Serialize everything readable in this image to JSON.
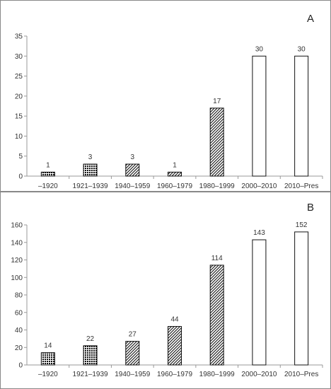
{
  "chart_data": [
    {
      "type": "bar",
      "panel": "A",
      "categories": [
        "–1920",
        "1921–1939",
        "1940–1959",
        "1960–1979",
        "1980–1999",
        "2000–2010",
        "2010–Pres"
      ],
      "values": [
        1,
        3,
        3,
        1,
        17,
        30,
        30
      ],
      "data_labels": [
        "1",
        "3",
        "3",
        "1",
        "17",
        "30",
        "30"
      ],
      "patterns": [
        "crosshatch",
        "crosshatch",
        "diag",
        "diag",
        "diag",
        "none",
        "none"
      ],
      "yticks": [
        "0",
        "5",
        "10",
        "15",
        "20",
        "25",
        "30",
        "35"
      ],
      "ylim": [
        0,
        35
      ],
      "grid": false,
      "legend": "none"
    },
    {
      "type": "bar",
      "panel": "B",
      "categories": [
        "–1920",
        "1921–1939",
        "1940–1959",
        "1960–1979",
        "1980–1999",
        "2000–2010",
        "2010–Pres"
      ],
      "values": [
        14,
        22,
        27,
        44,
        114,
        143,
        152
      ],
      "data_labels": [
        "14",
        "22",
        "27",
        "44",
        "114",
        "143",
        "152"
      ],
      "patterns": [
        "crosshatch",
        "crosshatch",
        "diag",
        "diag",
        "diag",
        "none",
        "none"
      ],
      "yticks": [
        "0",
        "20",
        "40",
        "60",
        "80",
        "100",
        "120",
        "140",
        "160"
      ],
      "ylim": [
        0,
        160
      ],
      "grid": false,
      "legend": "none"
    }
  ]
}
